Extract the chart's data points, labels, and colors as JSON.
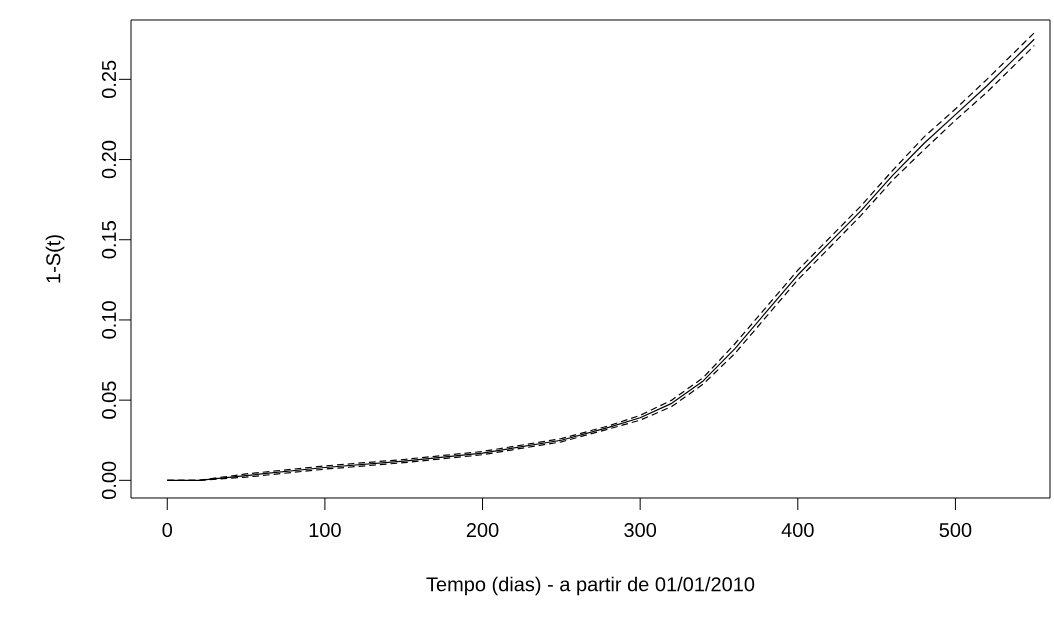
{
  "chart_data": {
    "type": "line",
    "xlabel": "Tempo (dias) - a partir de 01/01/2010",
    "ylabel": "1-S(t)",
    "xlim": [
      -23,
      560
    ],
    "ylim": [
      -0.011,
      0.287
    ],
    "xticks": [
      0,
      100,
      200,
      300,
      400,
      500
    ],
    "yticks": [
      {
        "value": 0,
        "label": "0.00"
      },
      {
        "value": 0.05,
        "label": "0.05"
      },
      {
        "value": 0.1,
        "label": "0.10"
      },
      {
        "value": 0.15,
        "label": "0.15"
      },
      {
        "value": 0.2,
        "label": "0.20"
      },
      {
        "value": 0.25,
        "label": "0.25"
      }
    ],
    "x": [
      0,
      20,
      50,
      100,
      150,
      200,
      250,
      280,
      300,
      320,
      340,
      360,
      380,
      400,
      420,
      440,
      460,
      480,
      500,
      520,
      550
    ],
    "series": [
      {
        "color": "#000000",
        "line_style": "solid",
        "values": [
          0,
          0,
          0.003,
          0.008,
          0.012,
          0.017,
          0.025,
          0.033,
          0.039,
          0.048,
          0.062,
          0.082,
          0.105,
          0.128,
          0.148,
          0.168,
          0.19,
          0.21,
          0.228,
          0.246,
          0.275
        ]
      },
      {
        "color": "#000000",
        "line_style": "dashed",
        "values": [
          0,
          0,
          0.002,
          0.007,
          0.011,
          0.016,
          0.024,
          0.032,
          0.0375,
          0.046,
          0.06,
          0.079,
          0.102,
          0.125,
          0.145,
          0.165,
          0.187,
          0.206,
          0.2245,
          0.242,
          0.271
        ]
      },
      {
        "color": "#000000",
        "line_style": "dashed",
        "values": [
          0,
          0,
          0.004,
          0.009,
          0.013,
          0.018,
          0.026,
          0.034,
          0.0405,
          0.05,
          0.064,
          0.085,
          0.108,
          0.131,
          0.151,
          0.171,
          0.193,
          0.214,
          0.2315,
          0.25,
          0.279
        ]
      }
    ]
  }
}
